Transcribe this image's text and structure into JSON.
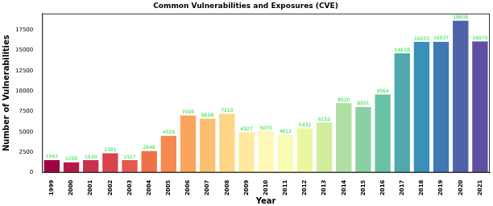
{
  "chart_data": {
    "type": "bar",
    "title": "Common Vulnerabilities and Exposures (CVE)",
    "x_label": "Year",
    "y_label": "Number of Vulnerabilities",
    "categories": [
      "1999",
      "2000",
      "2001",
      "2002",
      "2003",
      "2004",
      "2005",
      "2006",
      "2007",
      "2008",
      "2009",
      "2010",
      "2011",
      "2012",
      "2013",
      "2014",
      "2015",
      "2016",
      "2017",
      "2018",
      "2019",
      "2020",
      "2021"
    ],
    "values": [
      1542,
      1258,
      1530,
      2381,
      1527,
      2646,
      4526,
      7006,
      6608,
      7210,
      4927,
      5070,
      4612,
      5432,
      6152,
      8520,
      8051,
      9564,
      14618,
      16033,
      16037,
      18608,
      16070
    ],
    "colors": [
      "#9e0142",
      "#b41947",
      "#c9314c",
      "#d8434e",
      "#e55a4a",
      "#f07047",
      "#f6894f",
      "#fba55c",
      "#fdbf70",
      "#fed686",
      "#fee99e",
      "#fff8b6",
      "#f8fcb4",
      "#ebf7a0",
      "#d0ec9c",
      "#b0dfa3",
      "#8bd0a4",
      "#69c2a5",
      "#4ea8ae",
      "#3990b8",
      "#3f78b4",
      "#5062a9",
      "#5e4fa2"
    ],
    "ylim": [
      0,
      19500
    ],
    "yticks": [
      0,
      2500,
      5000,
      7500,
      10000,
      12500,
      15000,
      17500
    ],
    "grid": false,
    "data_labels": true
  }
}
